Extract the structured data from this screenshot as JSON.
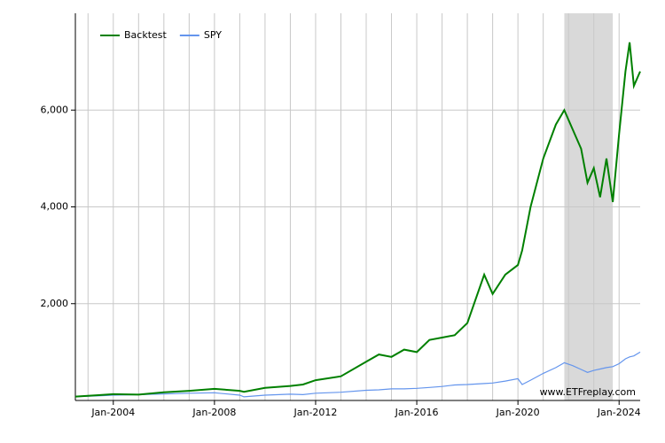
{
  "chart_data": {
    "type": "line",
    "x": [
      "2002-07",
      "2003-06",
      "2004-01",
      "2005-01",
      "2006-01",
      "2007-01",
      "2008-01",
      "2009-01",
      "2009-03",
      "2010-01",
      "2011-01",
      "2011-07",
      "2012-01",
      "2013-01",
      "2014-01",
      "2014-07",
      "2015-01",
      "2015-07",
      "2016-01",
      "2016-07",
      "2017-01",
      "2017-07",
      "2018-01",
      "2018-09",
      "2019-01",
      "2019-07",
      "2020-01",
      "2020-03",
      "2020-07",
      "2021-01",
      "2021-07",
      "2021-11",
      "2022-03",
      "2022-07",
      "2022-10",
      "2023-01",
      "2023-04",
      "2023-07",
      "2023-10",
      "2024-01",
      "2024-04",
      "2024-06",
      "2024-08",
      "2024-11"
    ],
    "series": [
      {
        "name": "Backtest",
        "color": "#008000",
        "values": [
          80,
          110,
          130,
          120,
          170,
          200,
          240,
          200,
          180,
          260,
          300,
          330,
          420,
          500,
          800,
          950,
          900,
          1050,
          1000,
          1250,
          1300,
          1350,
          1600,
          2600,
          2200,
          2600,
          2800,
          3100,
          4000,
          5000,
          5700,
          6000,
          5600,
          5200,
          4500,
          4800,
          4200,
          5000,
          4100,
          5500,
          6800,
          7400,
          6500,
          6800
        ]
      },
      {
        "name": "SPY",
        "color": "#6495ed",
        "values": [
          80,
          95,
          110,
          120,
          135,
          150,
          160,
          110,
          75,
          110,
          130,
          120,
          150,
          170,
          210,
          220,
          240,
          240,
          250,
          270,
          290,
          320,
          330,
          350,
          360,
          400,
          450,
          330,
          420,
          560,
          680,
          780,
          720,
          640,
          580,
          620,
          650,
          680,
          700,
          760,
          860,
          900,
          920,
          1000
        ]
      }
    ],
    "ylim": [
      0,
      8000
    ],
    "yticks": [
      {
        "value": 2000,
        "label": "2,000"
      },
      {
        "value": 4000,
        "label": "4,000"
      },
      {
        "value": 6000,
        "label": "6,000"
      }
    ],
    "xlim": [
      "2002-07",
      "2024-11"
    ],
    "xticks": [
      {
        "value": "2004-01",
        "label": "Jan-2004"
      },
      {
        "value": "2008-01",
        "label": "Jan-2008"
      },
      {
        "value": "2012-01",
        "label": "Jan-2012"
      },
      {
        "value": "2016-01",
        "label": "Jan-2016"
      },
      {
        "value": "2020-01",
        "label": "Jan-2020"
      },
      {
        "value": "2024-01",
        "label": "Jan-2024"
      }
    ],
    "x_gridlines": [
      "2003-01",
      "2005-01",
      "2006-01",
      "2007-01",
      "2009-01",
      "2010-01",
      "2011-01",
      "2013-01",
      "2014-01",
      "2015-01",
      "2017-01",
      "2018-01",
      "2019-01",
      "2021-01",
      "2022-01",
      "2023-01"
    ],
    "shaded_period": {
      "start": "2021-11",
      "end": "2023-10",
      "color": "#d9d9d9"
    },
    "grid": true,
    "legend": "top-left",
    "watermark": "www.ETFreplay.com"
  }
}
